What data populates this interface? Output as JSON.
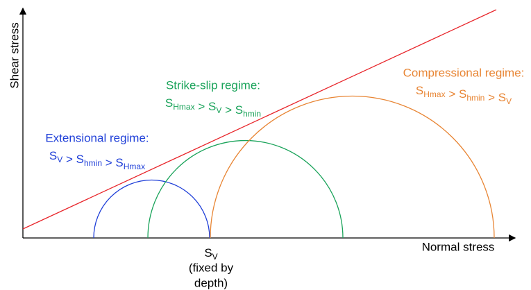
{
  "axes": {
    "y_label": "Shear stress",
    "x_label": "Normal stress"
  },
  "sv_marker": {
    "symbol": "S",
    "subscript": "V",
    "note_lines": [
      "(fixed by",
      "depth)"
    ]
  },
  "regimes": [
    {
      "title": "Extensional regime:",
      "operator": ">",
      "terms": [
        {
          "symbol": "S",
          "subscript": "V"
        },
        {
          "symbol": "S",
          "subscript": "hmin"
        },
        {
          "symbol": "S",
          "subscript": "Hmax"
        }
      ]
    },
    {
      "title": "Strike-slip regime:",
      "operator": ">",
      "terms": [
        {
          "symbol": "S",
          "subscript": "Hmax"
        },
        {
          "symbol": "S",
          "subscript": "V"
        },
        {
          "symbol": "S",
          "subscript": "hmin"
        }
      ]
    },
    {
      "title": "Compressional regime:",
      "operator": ">",
      "terms": [
        {
          "symbol": "S",
          "subscript": "Hmax"
        },
        {
          "symbol": "S",
          "subscript": "hmin"
        },
        {
          "symbol": "S",
          "subscript": "V"
        }
      ]
    }
  ]
}
